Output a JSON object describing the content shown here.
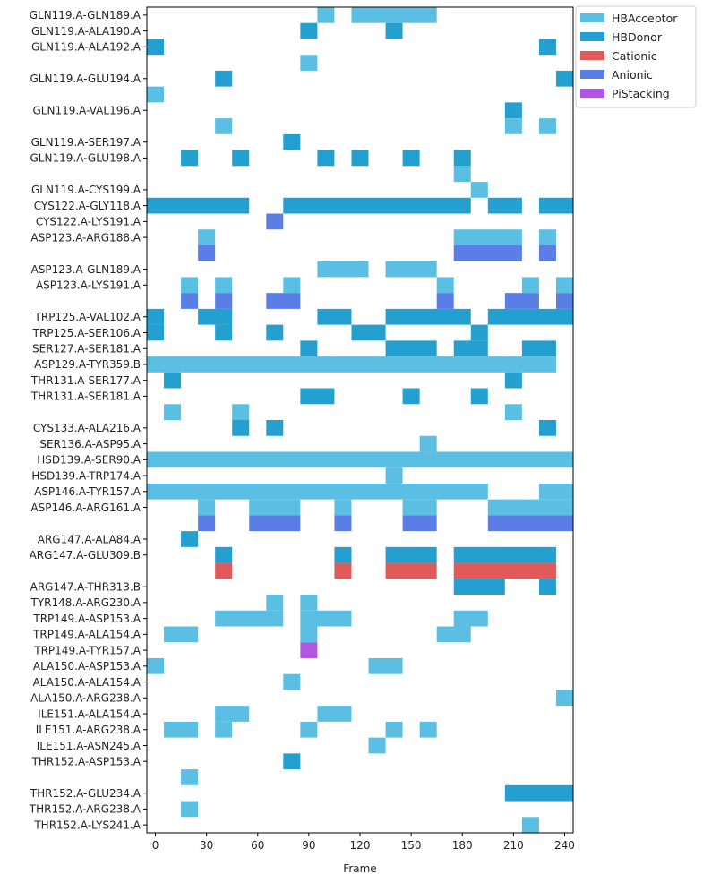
{
  "chart_data": {
    "type": "heatmap",
    "xlabel": "Frame",
    "x_ticks": [
      0,
      30,
      60,
      90,
      120,
      150,
      180,
      210,
      240
    ],
    "x_range": [
      -5,
      245
    ],
    "row_labels": [
      "GLN119.A-GLN189.A",
      "GLN119.A-ALA190.A",
      "GLN119.A-ALA192.A",
      "",
      "GLN119.A-GLU194.A",
      "",
      "GLN119.A-VAL196.A",
      "",
      "GLN119.A-SER197.A",
      "GLN119.A-GLU198.A",
      "",
      "GLN119.A-CYS199.A",
      "CYS122.A-GLY118.A",
      "CYS122.A-LYS191.A",
      "ASP123.A-ARG188.A",
      "",
      "ASP123.A-GLN189.A",
      "ASP123.A-LYS191.A",
      "",
      "TRP125.A-VAL102.A",
      "TRP125.A-SER106.A",
      "SER127.A-SER181.A",
      "ASP129.A-TYR359.B",
      "THR131.A-SER177.A",
      "THR131.A-SER181.A",
      "",
      "CYS133.A-ALA216.A",
      "SER136.A-ASP95.A",
      "HSD139.A-SER90.A",
      "HSD139.A-TRP174.A",
      "ASP146.A-TYR157.A",
      "ASP146.A-ARG161.A",
      "",
      "ARG147.A-ALA84.A",
      "ARG147.A-GLU309.B",
      "",
      "ARG147.A-THR313.B",
      "TYR148.A-ARG230.A",
      "TRP149.A-ASP153.A",
      "TRP149.A-ALA154.A",
      "TRP149.A-TYR157.A",
      "ALA150.A-ASP153.A",
      "ALA150.A-ALA154.A",
      "ALA150.A-ARG238.A",
      "ILE151.A-ALA154.A",
      "ILE151.A-ARG238.A",
      "ILE151.A-ASN245.A",
      "THR152.A-ASP153.A",
      "",
      "THR152.A-GLU234.A",
      "THR152.A-ARG238.A",
      "THR152.A-LYS241.A"
    ],
    "legend": [
      {
        "name": "HBAcceptor",
        "color": "#5bbfe3"
      },
      {
        "name": "HBDonor",
        "color": "#23a0cf"
      },
      {
        "name": "Cationic",
        "color": "#e05a5a"
      },
      {
        "name": "Anionic",
        "color": "#5a7ee6"
      },
      {
        "name": "PiStacking",
        "color": "#b056e3"
      }
    ],
    "legend_placement": "outside top-right",
    "segments": [
      {
        "row": 0,
        "x0": 95,
        "x1": 105,
        "type": "HBAcceptor"
      },
      {
        "row": 0,
        "x0": 115,
        "x1": 165,
        "type": "HBAcceptor"
      },
      {
        "row": 1,
        "x0": 85,
        "x1": 95,
        "type": "HBDonor"
      },
      {
        "row": 1,
        "x0": 135,
        "x1": 145,
        "type": "HBDonor"
      },
      {
        "row": 2,
        "x0": -5,
        "x1": 5,
        "type": "HBDonor"
      },
      {
        "row": 2,
        "x0": 225,
        "x1": 235,
        "type": "HBDonor"
      },
      {
        "row": 3,
        "x0": 85,
        "x1": 95,
        "type": "HBAcceptor"
      },
      {
        "row": 4,
        "x0": 35,
        "x1": 45,
        "type": "HBDonor"
      },
      {
        "row": 4,
        "x0": 235,
        "x1": 245,
        "type": "HBDonor"
      },
      {
        "row": 5,
        "x0": -5,
        "x1": 5,
        "type": "HBAcceptor"
      },
      {
        "row": 6,
        "x0": 205,
        "x1": 215,
        "type": "HBDonor"
      },
      {
        "row": 7,
        "x0": 35,
        "x1": 45,
        "type": "HBAcceptor"
      },
      {
        "row": 7,
        "x0": 205,
        "x1": 215,
        "type": "HBAcceptor"
      },
      {
        "row": 7,
        "x0": 225,
        "x1": 235,
        "type": "HBAcceptor"
      },
      {
        "row": 8,
        "x0": 75,
        "x1": 85,
        "type": "HBDonor"
      },
      {
        "row": 9,
        "x0": 15,
        "x1": 25,
        "type": "HBDonor"
      },
      {
        "row": 9,
        "x0": 45,
        "x1": 55,
        "type": "HBDonor"
      },
      {
        "row": 9,
        "x0": 95,
        "x1": 105,
        "type": "HBDonor"
      },
      {
        "row": 9,
        "x0": 115,
        "x1": 125,
        "type": "HBDonor"
      },
      {
        "row": 9,
        "x0": 145,
        "x1": 155,
        "type": "HBDonor"
      },
      {
        "row": 9,
        "x0": 175,
        "x1": 185,
        "type": "HBDonor"
      },
      {
        "row": 10,
        "x0": 175,
        "x1": 185,
        "type": "HBAcceptor"
      },
      {
        "row": 11,
        "x0": 185,
        "x1": 195,
        "type": "HBAcceptor"
      },
      {
        "row": 12,
        "x0": -5,
        "x1": 55,
        "type": "HBDonor"
      },
      {
        "row": 12,
        "x0": 75,
        "x1": 185,
        "type": "HBDonor"
      },
      {
        "row": 12,
        "x0": 195,
        "x1": 215,
        "type": "HBDonor"
      },
      {
        "row": 12,
        "x0": 225,
        "x1": 245,
        "type": "HBDonor"
      },
      {
        "row": 13,
        "x0": 65,
        "x1": 75,
        "type": "Anionic"
      },
      {
        "row": 14,
        "x0": 25,
        "x1": 35,
        "type": "HBAcceptor"
      },
      {
        "row": 14,
        "x0": 175,
        "x1": 215,
        "type": "HBAcceptor"
      },
      {
        "row": 14,
        "x0": 225,
        "x1": 235,
        "type": "HBAcceptor"
      },
      {
        "row": 15,
        "x0": 25,
        "x1": 35,
        "type": "Anionic"
      },
      {
        "row": 15,
        "x0": 175,
        "x1": 215,
        "type": "Anionic"
      },
      {
        "row": 15,
        "x0": 225,
        "x1": 235,
        "type": "Anionic"
      },
      {
        "row": 16,
        "x0": 95,
        "x1": 125,
        "type": "HBAcceptor"
      },
      {
        "row": 16,
        "x0": 135,
        "x1": 165,
        "type": "HBAcceptor"
      },
      {
        "row": 17,
        "x0": 15,
        "x1": 25,
        "type": "HBAcceptor"
      },
      {
        "row": 17,
        "x0": 35,
        "x1": 45,
        "type": "HBAcceptor"
      },
      {
        "row": 17,
        "x0": 75,
        "x1": 85,
        "type": "HBAcceptor"
      },
      {
        "row": 17,
        "x0": 165,
        "x1": 175,
        "type": "HBAcceptor"
      },
      {
        "row": 17,
        "x0": 215,
        "x1": 225,
        "type": "HBAcceptor"
      },
      {
        "row": 17,
        "x0": 235,
        "x1": 245,
        "type": "HBAcceptor"
      },
      {
        "row": 18,
        "x0": 15,
        "x1": 25,
        "type": "Anionic"
      },
      {
        "row": 18,
        "x0": 35,
        "x1": 45,
        "type": "Anionic"
      },
      {
        "row": 18,
        "x0": 65,
        "x1": 85,
        "type": "Anionic"
      },
      {
        "row": 18,
        "x0": 165,
        "x1": 175,
        "type": "Anionic"
      },
      {
        "row": 18,
        "x0": 205,
        "x1": 225,
        "type": "Anionic"
      },
      {
        "row": 18,
        "x0": 235,
        "x1": 245,
        "type": "Anionic"
      },
      {
        "row": 19,
        "x0": -5,
        "x1": 5,
        "type": "HBDonor"
      },
      {
        "row": 19,
        "x0": 25,
        "x1": 45,
        "type": "HBDonor"
      },
      {
        "row": 19,
        "x0": 95,
        "x1": 115,
        "type": "HBDonor"
      },
      {
        "row": 19,
        "x0": 135,
        "x1": 185,
        "type": "HBDonor"
      },
      {
        "row": 19,
        "x0": 195,
        "x1": 245,
        "type": "HBDonor"
      },
      {
        "row": 20,
        "x0": -5,
        "x1": 5,
        "type": "HBDonor"
      },
      {
        "row": 20,
        "x0": 35,
        "x1": 45,
        "type": "HBDonor"
      },
      {
        "row": 20,
        "x0": 65,
        "x1": 75,
        "type": "HBDonor"
      },
      {
        "row": 20,
        "x0": 115,
        "x1": 135,
        "type": "HBDonor"
      },
      {
        "row": 20,
        "x0": 185,
        "x1": 195,
        "type": "HBDonor"
      },
      {
        "row": 21,
        "x0": 85,
        "x1": 95,
        "type": "HBDonor"
      },
      {
        "row": 21,
        "x0": 135,
        "x1": 165,
        "type": "HBDonor"
      },
      {
        "row": 21,
        "x0": 175,
        "x1": 195,
        "type": "HBDonor"
      },
      {
        "row": 21,
        "x0": 215,
        "x1": 235,
        "type": "HBDonor"
      },
      {
        "row": 22,
        "x0": -5,
        "x1": 235,
        "type": "HBAcceptor"
      },
      {
        "row": 23,
        "x0": 5,
        "x1": 15,
        "type": "HBDonor"
      },
      {
        "row": 23,
        "x0": 205,
        "x1": 215,
        "type": "HBDonor"
      },
      {
        "row": 24,
        "x0": 85,
        "x1": 105,
        "type": "HBDonor"
      },
      {
        "row": 24,
        "x0": 145,
        "x1": 155,
        "type": "HBDonor"
      },
      {
        "row": 24,
        "x0": 185,
        "x1": 195,
        "type": "HBDonor"
      },
      {
        "row": 25,
        "x0": 5,
        "x1": 15,
        "type": "HBAcceptor"
      },
      {
        "row": 25,
        "x0": 45,
        "x1": 55,
        "type": "HBAcceptor"
      },
      {
        "row": 25,
        "x0": 205,
        "x1": 215,
        "type": "HBAcceptor"
      },
      {
        "row": 26,
        "x0": 45,
        "x1": 55,
        "type": "HBDonor"
      },
      {
        "row": 26,
        "x0": 65,
        "x1": 75,
        "type": "HBDonor"
      },
      {
        "row": 26,
        "x0": 225,
        "x1": 235,
        "type": "HBDonor"
      },
      {
        "row": 27,
        "x0": 155,
        "x1": 165,
        "type": "HBAcceptor"
      },
      {
        "row": 28,
        "x0": -5,
        "x1": 245,
        "type": "HBAcceptor"
      },
      {
        "row": 29,
        "x0": 135,
        "x1": 145,
        "type": "HBAcceptor"
      },
      {
        "row": 30,
        "x0": -5,
        "x1": 195,
        "type": "HBAcceptor"
      },
      {
        "row": 30,
        "x0": 225,
        "x1": 245,
        "type": "HBAcceptor"
      },
      {
        "row": 31,
        "x0": 25,
        "x1": 35,
        "type": "HBAcceptor"
      },
      {
        "row": 31,
        "x0": 55,
        "x1": 85,
        "type": "HBAcceptor"
      },
      {
        "row": 31,
        "x0": 105,
        "x1": 115,
        "type": "HBAcceptor"
      },
      {
        "row": 31,
        "x0": 145,
        "x1": 165,
        "type": "HBAcceptor"
      },
      {
        "row": 31,
        "x0": 195,
        "x1": 245,
        "type": "HBAcceptor"
      },
      {
        "row": 32,
        "x0": 25,
        "x1": 35,
        "type": "Anionic"
      },
      {
        "row": 32,
        "x0": 55,
        "x1": 85,
        "type": "Anionic"
      },
      {
        "row": 32,
        "x0": 105,
        "x1": 115,
        "type": "Anionic"
      },
      {
        "row": 32,
        "x0": 145,
        "x1": 165,
        "type": "Anionic"
      },
      {
        "row": 32,
        "x0": 195,
        "x1": 245,
        "type": "Anionic"
      },
      {
        "row": 33,
        "x0": 15,
        "x1": 25,
        "type": "HBDonor"
      },
      {
        "row": 34,
        "x0": 35,
        "x1": 45,
        "type": "HBDonor"
      },
      {
        "row": 34,
        "x0": 105,
        "x1": 115,
        "type": "HBDonor"
      },
      {
        "row": 34,
        "x0": 135,
        "x1": 165,
        "type": "HBDonor"
      },
      {
        "row": 34,
        "x0": 175,
        "x1": 235,
        "type": "HBDonor"
      },
      {
        "row": 35,
        "x0": 35,
        "x1": 45,
        "type": "Cationic"
      },
      {
        "row": 35,
        "x0": 105,
        "x1": 115,
        "type": "Cationic"
      },
      {
        "row": 35,
        "x0": 135,
        "x1": 165,
        "type": "Cationic"
      },
      {
        "row": 35,
        "x0": 175,
        "x1": 235,
        "type": "Cationic"
      },
      {
        "row": 36,
        "x0": 175,
        "x1": 205,
        "type": "HBDonor"
      },
      {
        "row": 36,
        "x0": 225,
        "x1": 235,
        "type": "HBDonor"
      },
      {
        "row": 37,
        "x0": 65,
        "x1": 75,
        "type": "HBAcceptor"
      },
      {
        "row": 37,
        "x0": 85,
        "x1": 95,
        "type": "HBAcceptor"
      },
      {
        "row": 38,
        "x0": 35,
        "x1": 75,
        "type": "HBAcceptor"
      },
      {
        "row": 38,
        "x0": 85,
        "x1": 115,
        "type": "HBAcceptor"
      },
      {
        "row": 38,
        "x0": 175,
        "x1": 195,
        "type": "HBAcceptor"
      },
      {
        "row": 39,
        "x0": 5,
        "x1": 25,
        "type": "HBAcceptor"
      },
      {
        "row": 39,
        "x0": 85,
        "x1": 95,
        "type": "HBAcceptor"
      },
      {
        "row": 39,
        "x0": 165,
        "x1": 185,
        "type": "HBAcceptor"
      },
      {
        "row": 40,
        "x0": 85,
        "x1": 95,
        "type": "PiStacking"
      },
      {
        "row": 41,
        "x0": -5,
        "x1": 5,
        "type": "HBAcceptor"
      },
      {
        "row": 41,
        "x0": 125,
        "x1": 145,
        "type": "HBAcceptor"
      },
      {
        "row": 42,
        "x0": 75,
        "x1": 85,
        "type": "HBAcceptor"
      },
      {
        "row": 43,
        "x0": 235,
        "x1": 245,
        "type": "HBAcceptor"
      },
      {
        "row": 44,
        "x0": 35,
        "x1": 55,
        "type": "HBAcceptor"
      },
      {
        "row": 44,
        "x0": 95,
        "x1": 115,
        "type": "HBAcceptor"
      },
      {
        "row": 45,
        "x0": 5,
        "x1": 25,
        "type": "HBAcceptor"
      },
      {
        "row": 45,
        "x0": 35,
        "x1": 45,
        "type": "HBAcceptor"
      },
      {
        "row": 45,
        "x0": 85,
        "x1": 95,
        "type": "HBAcceptor"
      },
      {
        "row": 45,
        "x0": 135,
        "x1": 145,
        "type": "HBAcceptor"
      },
      {
        "row": 45,
        "x0": 155,
        "x1": 165,
        "type": "HBAcceptor"
      },
      {
        "row": 46,
        "x0": 125,
        "x1": 135,
        "type": "HBAcceptor"
      },
      {
        "row": 47,
        "x0": 75,
        "x1": 85,
        "type": "HBDonor"
      },
      {
        "row": 48,
        "x0": 15,
        "x1": 25,
        "type": "HBAcceptor"
      },
      {
        "row": 49,
        "x0": 205,
        "x1": 245,
        "type": "HBDonor"
      },
      {
        "row": 50,
        "x0": 15,
        "x1": 25,
        "type": "HBAcceptor"
      },
      {
        "row": 51,
        "x0": 215,
        "x1": 225,
        "type": "HBAcceptor"
      }
    ]
  }
}
